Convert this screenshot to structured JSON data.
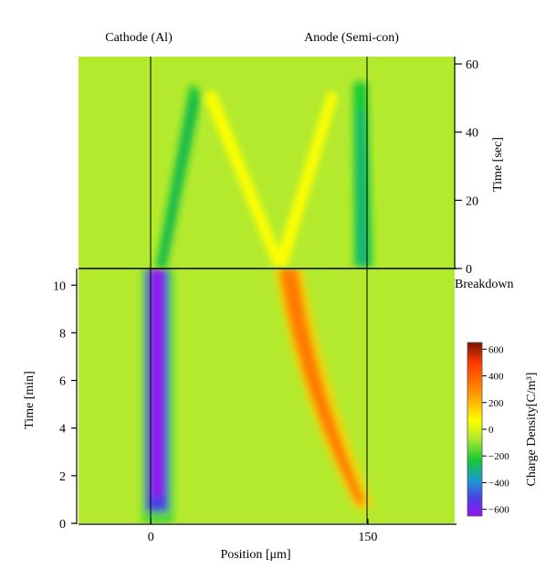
{
  "chart_data": {
    "type": "heatmap",
    "title": "",
    "electrodes": {
      "cathode_label": "Cathode (Al)",
      "anode_label": "Anode (Semi-con)",
      "cathode_position": 0,
      "anode_position": 150
    },
    "xlabel": "Position [μm]",
    "xlim": [
      -50,
      210
    ],
    "x_ticks": [
      0,
      150
    ],
    "x_tick_labels": [
      "0",
      "150"
    ],
    "panels": [
      {
        "name": "after-breakdown",
        "ylabel": "Time [sec]",
        "ylim": [
          0,
          60
        ],
        "y_ticks": [
          0,
          20,
          40,
          60
        ],
        "y_tick_labels": [
          "0",
          "20",
          "40",
          "60"
        ],
        "y_axis_side": "right",
        "annotation": "Breakdown",
        "features": [
          {
            "kind": "negative-band",
            "x": [
              [
                5,
                0
              ],
              [
                35,
                50
              ]
            ],
            "x_end": [
              [
                12,
                0
              ],
              [
                42,
                50
              ]
            ],
            "peak_density": -250
          },
          {
            "kind": "positive-band",
            "path": [
              [
                45,
                48
              ],
              [
                80,
                10
              ],
              [
                88,
                0
              ]
            ],
            "peak_density": 150
          },
          {
            "kind": "positive-band",
            "path": [
              [
                100,
                0
              ],
              [
                120,
                20
              ],
              [
                135,
                55
              ]
            ],
            "peak_density": 150
          },
          {
            "kind": "negative-band",
            "path": [
              [
                145,
                0
              ],
              [
                143,
                30
              ],
              [
                145,
                55
              ]
            ],
            "peak_density": -250
          }
        ]
      },
      {
        "name": "before-breakdown",
        "ylabel": "Time [min]",
        "ylim": [
          0,
          10.7
        ],
        "y_ticks": [
          0,
          2,
          4,
          6,
          8,
          10
        ],
        "y_tick_labels": [
          "0",
          "2",
          "4",
          "6",
          "8",
          "10"
        ],
        "y_axis_side": "left",
        "features": [
          {
            "kind": "negative-band",
            "path": [
              [
                5,
                1
              ],
              [
                5,
                10.7
              ]
            ],
            "peak_density": -620
          },
          {
            "kind": "positive-band",
            "path": [
              [
                148,
                1.2
              ],
              [
                135,
                2.5
              ],
              [
                118,
                5
              ],
              [
                105,
                8
              ],
              [
                97,
                10.7
              ]
            ],
            "peak_density": 420
          }
        ]
      }
    ],
    "colorbar": {
      "label": "Charge Density[C/m³]",
      "range": [
        -650,
        650
      ],
      "ticks": [
        600,
        400,
        200,
        0,
        -200,
        -400,
        -600
      ],
      "tick_labels": [
        "600",
        "400",
        "200",
        "0",
        "−200",
        "−400",
        "−600"
      ],
      "colors": [
        "#7a1200",
        "#ff3c00",
        "#ff9a00",
        "#ffff00",
        "#b3ea2e",
        "#13c936",
        "#1e96d4",
        "#4c3fe4",
        "#9513f2"
      ]
    },
    "grid": false,
    "legend": "colorbar-right"
  }
}
